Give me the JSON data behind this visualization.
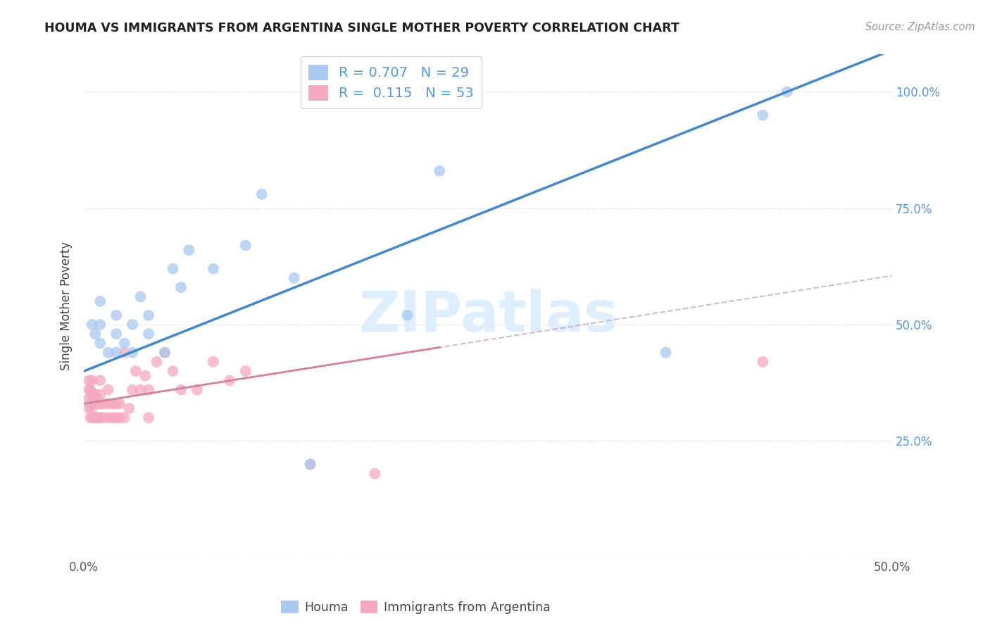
{
  "title": "HOUMA VS IMMIGRANTS FROM ARGENTINA SINGLE MOTHER POVERTY CORRELATION CHART",
  "source": "Source: ZipAtlas.com",
  "ylabel": "Single Mother Poverty",
  "xlim": [
    0.0,
    0.5
  ],
  "ylim": [
    0.0,
    1.08
  ],
  "houma_R": 0.707,
  "houma_N": 29,
  "argentina_R": 0.115,
  "argentina_N": 53,
  "houma_color": "#a8c8f0",
  "argentina_color": "#f5a8be",
  "houma_line_color": "#4488cc",
  "argentina_line_solid_color": "#e07090",
  "argentina_line_dash_color": "#c0a8b0",
  "watermark_color": "#ddeeff",
  "houma_x": [
    0.005,
    0.007,
    0.01,
    0.01,
    0.01,
    0.015,
    0.02,
    0.02,
    0.02,
    0.025,
    0.03,
    0.03,
    0.035,
    0.04,
    0.04,
    0.05,
    0.055,
    0.06,
    0.065,
    0.08,
    0.1,
    0.11,
    0.13,
    0.14,
    0.2,
    0.22,
    0.36,
    0.42,
    0.435
  ],
  "houma_y": [
    0.5,
    0.48,
    0.46,
    0.5,
    0.55,
    0.44,
    0.44,
    0.48,
    0.52,
    0.46,
    0.44,
    0.5,
    0.56,
    0.48,
    0.52,
    0.44,
    0.62,
    0.58,
    0.66,
    0.62,
    0.67,
    0.78,
    0.6,
    0.2,
    0.52,
    0.83,
    0.44,
    0.95,
    1.0
  ],
  "argentina_x": [
    0.003,
    0.003,
    0.003,
    0.003,
    0.004,
    0.004,
    0.004,
    0.005,
    0.005,
    0.005,
    0.005,
    0.006,
    0.007,
    0.007,
    0.008,
    0.008,
    0.009,
    0.009,
    0.01,
    0.01,
    0.01,
    0.01,
    0.012,
    0.012,
    0.015,
    0.015,
    0.015,
    0.018,
    0.018,
    0.02,
    0.02,
    0.022,
    0.022,
    0.025,
    0.025,
    0.028,
    0.03,
    0.032,
    0.035,
    0.038,
    0.04,
    0.04,
    0.045,
    0.05,
    0.055,
    0.06,
    0.07,
    0.08,
    0.09,
    0.1,
    0.14,
    0.18,
    0.42
  ],
  "argentina_y": [
    0.32,
    0.34,
    0.36,
    0.38,
    0.3,
    0.33,
    0.36,
    0.3,
    0.32,
    0.35,
    0.38,
    0.33,
    0.3,
    0.35,
    0.3,
    0.34,
    0.3,
    0.33,
    0.3,
    0.33,
    0.35,
    0.38,
    0.3,
    0.33,
    0.3,
    0.33,
    0.36,
    0.3,
    0.33,
    0.3,
    0.33,
    0.3,
    0.33,
    0.3,
    0.44,
    0.32,
    0.36,
    0.4,
    0.36,
    0.39,
    0.3,
    0.36,
    0.42,
    0.44,
    0.4,
    0.36,
    0.36,
    0.42,
    0.38,
    0.4,
    0.2,
    0.18,
    0.42
  ]
}
